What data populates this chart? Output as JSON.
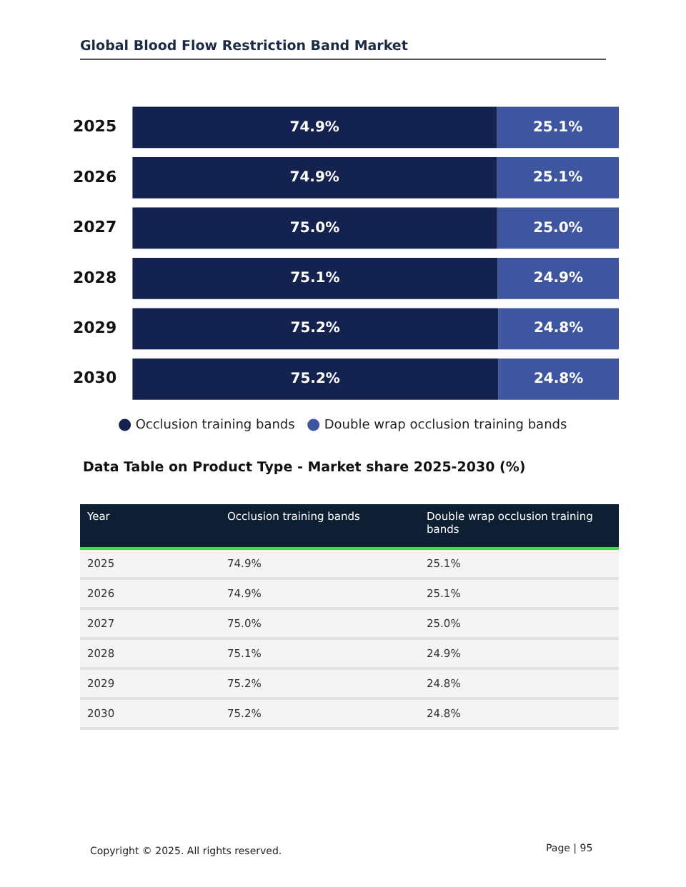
{
  "chart_data": {
    "type": "bar",
    "orientation": "horizontal",
    "stacked": true,
    "title": "Global Blood Flow Restriction Band Market",
    "categories": [
      "2025",
      "2026",
      "2027",
      "2028",
      "2029",
      "2030"
    ],
    "series": [
      {
        "name": "Occlusion training bands",
        "color": "#14224f",
        "values": [
          74.9,
          74.9,
          75.0,
          75.1,
          75.2,
          75.2
        ],
        "value_labels": [
          "74.9%",
          "74.9%",
          "75.0%",
          "75.1%",
          "75.2%",
          "75.2%"
        ]
      },
      {
        "name": "Double wrap occlusion training bands",
        "color": "#3e55a0",
        "values": [
          25.1,
          25.1,
          25.0,
          24.9,
          24.8,
          24.8
        ],
        "value_labels": [
          "25.1%",
          "25.1%",
          "25.0%",
          "24.9%",
          "24.8%",
          "24.8%"
        ]
      }
    ],
    "xlim": [
      0,
      100
    ],
    "tick_labels": "y",
    "grid": false,
    "legend": "bottom",
    "data_labels": true,
    "annotations": [
      "Data Table on Product Type - Market share 2025-2030 (%)",
      "Year",
      "Copyright © 2025. All rights reserved.",
      "Page | 95"
    ]
  }
}
